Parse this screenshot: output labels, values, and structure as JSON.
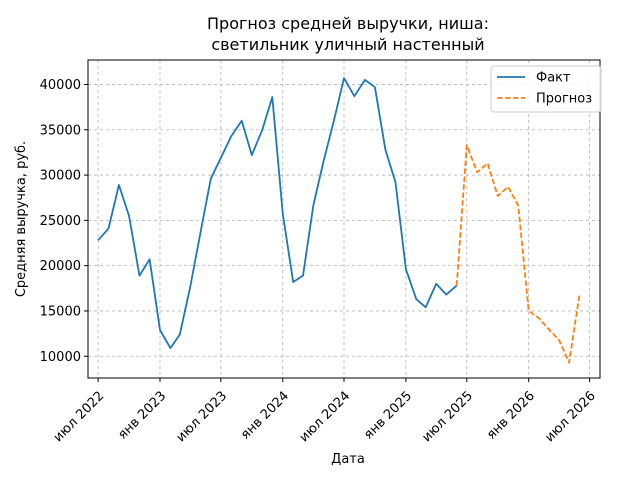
{
  "chart_data": {
    "type": "line",
    "title_lines": [
      "Прогноз средней выручки, ниша:",
      "светильник уличный настенный"
    ],
    "xlabel": "Дата",
    "ylabel": "Средняя выручка, руб.",
    "ylim": [
      7600,
      42700
    ],
    "xlim": [
      "2022-06-01",
      "2026-08-01"
    ],
    "yticks": [
      10000,
      15000,
      20000,
      25000,
      30000,
      35000,
      40000
    ],
    "xticks": [
      {
        "date": "2022-07-01",
        "label": "июл 2022"
      },
      {
        "date": "2023-01-01",
        "label": "янв 2023"
      },
      {
        "date": "2023-07-01",
        "label": "июл 2023"
      },
      {
        "date": "2024-01-01",
        "label": "янв 2024"
      },
      {
        "date": "2024-07-01",
        "label": "июл 2024"
      },
      {
        "date": "2025-01-01",
        "label": "янв 2025"
      },
      {
        "date": "2025-07-01",
        "label": "июл 2025"
      },
      {
        "date": "2026-01-01",
        "label": "янв 2026"
      },
      {
        "date": "2026-07-01",
        "label": "июл 2026"
      }
    ],
    "grid": true,
    "legend_position": "top-right",
    "series": [
      {
        "name": "Факт",
        "color": "#1f77b4",
        "style": "solid",
        "points": [
          [
            "2022-07-01",
            22800
          ],
          [
            "2022-08-01",
            24100
          ],
          [
            "2022-09-01",
            28900
          ],
          [
            "2022-10-01",
            25500
          ],
          [
            "2022-11-01",
            18900
          ],
          [
            "2022-12-01",
            20700
          ],
          [
            "2023-01-01",
            12900
          ],
          [
            "2023-02-01",
            10900
          ],
          [
            "2023-03-01",
            12400
          ],
          [
            "2023-04-01",
            17700
          ],
          [
            "2023-05-01",
            23600
          ],
          [
            "2023-06-01",
            29600
          ],
          [
            "2023-07-01",
            31900
          ],
          [
            "2023-08-01",
            34300
          ],
          [
            "2023-09-01",
            36000
          ],
          [
            "2023-10-01",
            32200
          ],
          [
            "2023-11-01",
            35000
          ],
          [
            "2023-12-01",
            38600
          ],
          [
            "2024-01-01",
            25700
          ],
          [
            "2024-02-01",
            18200
          ],
          [
            "2024-03-01",
            18900
          ],
          [
            "2024-04-01",
            26700
          ],
          [
            "2024-05-01",
            31500
          ],
          [
            "2024-06-01",
            36000
          ],
          [
            "2024-07-01",
            40700
          ],
          [
            "2024-08-01",
            38700
          ],
          [
            "2024-09-01",
            40500
          ],
          [
            "2024-10-01",
            39700
          ],
          [
            "2024-11-01",
            32800
          ],
          [
            "2024-12-01",
            29200
          ],
          [
            "2025-01-01",
            19600
          ],
          [
            "2025-02-01",
            16300
          ],
          [
            "2025-03-01",
            15400
          ],
          [
            "2025-04-01",
            18000
          ],
          [
            "2025-05-01",
            16800
          ],
          [
            "2025-06-01",
            17800
          ]
        ]
      },
      {
        "name": "Прогноз",
        "color": "#ff7f0e",
        "style": "dashed",
        "points": [
          [
            "2025-06-01",
            17800
          ],
          [
            "2025-07-01",
            33300
          ],
          [
            "2025-08-01",
            30300
          ],
          [
            "2025-09-01",
            31300
          ],
          [
            "2025-10-01",
            27700
          ],
          [
            "2025-11-01",
            28700
          ],
          [
            "2025-12-01",
            26600
          ],
          [
            "2026-01-01",
            15000
          ],
          [
            "2026-02-01",
            14200
          ],
          [
            "2026-03-01",
            13000
          ],
          [
            "2026-04-01",
            11800
          ],
          [
            "2026-05-01",
            9300
          ],
          [
            "2026-06-01",
            16800
          ]
        ]
      }
    ]
  }
}
